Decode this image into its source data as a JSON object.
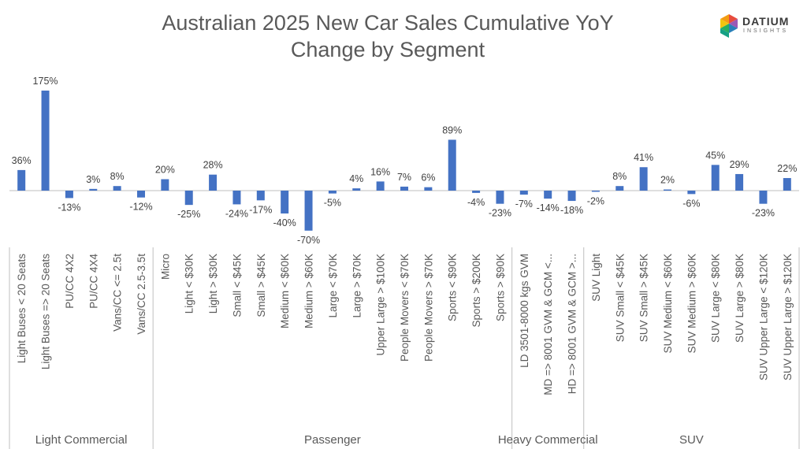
{
  "header": {
    "title_line1": "Australian 2025 New Car Sales Cumulative YoY",
    "title_line2": "Change by Segment",
    "logo_word": "DATIUM",
    "logo_sub": "INSIGHTS"
  },
  "colors": {
    "bar": "#4472C4",
    "axis": "#bfbfbf",
    "text": "#595959"
  },
  "chart_data": {
    "type": "bar",
    "title": "Australian 2025 New Car Sales Cumulative YoY Change by Segment",
    "ylim": [
      -70,
      175
    ],
    "grid": false,
    "categories": [
      "Light Buses < 20 Seats",
      "Light Buses => 20 Seats",
      "PU/CC 4X2",
      "PU/CC 4X4",
      "Vans/CC <= 2.5t",
      "Vans/CC 2.5-3.5t",
      "Micro",
      "Light < $30K",
      "Light > $30K",
      "Small < $45K",
      "Small > $45K",
      "Medium < $60K",
      "Medium > $60K",
      "Large < $70K",
      "Large > $70K",
      "Upper Large > $100K",
      "People Movers < $70K",
      "People Movers > $70K",
      "Sports < $90K",
      "Sports > $200K",
      "Sports > $90K",
      "LD 3501-8000 kgs GVM",
      "MD => 8001 GVM & GCM <...",
      "HD => 8001 GVM & GCM >...",
      "SUV Light",
      "SUV Small < $45K",
      "SUV Small > $45K",
      "SUV Medium < $60K",
      "SUV Medium > $60K",
      "SUV Large < $80K",
      "SUV Large > $80K",
      "SUV Upper Large < $120K",
      "SUV Upper Large > $120K"
    ],
    "values": [
      36,
      175,
      -13,
      3,
      8,
      -12,
      20,
      -25,
      28,
      -24,
      -17,
      -40,
      -70,
      -5,
      4,
      16,
      7,
      6,
      89,
      -4,
      -23,
      -7,
      -14,
      -18,
      -2,
      8,
      41,
      2,
      -6,
      45,
      29,
      -23,
      22
    ],
    "value_labels": [
      "36%",
      "175%",
      "-13%",
      "3%",
      "8%",
      "-12%",
      "20%",
      "-25%",
      "28%",
      "-24%",
      "-17%",
      "-40%",
      "-70%",
      "-5%",
      "4%",
      "16%",
      "7%",
      "6%",
      "89%",
      "-4%",
      "-23%",
      "-7%",
      "-14%",
      "-18%",
      "-2%",
      "8%",
      "41%",
      "2%",
      "-6%",
      "45%",
      "29%",
      "-23%",
      "22%"
    ],
    "groups": [
      {
        "name": "Light Commercial",
        "count": 6
      },
      {
        "name": "Passenger",
        "count": 15
      },
      {
        "name": "Heavy Commercial",
        "count": 3
      },
      {
        "name": "SUV",
        "count": 9
      }
    ]
  }
}
